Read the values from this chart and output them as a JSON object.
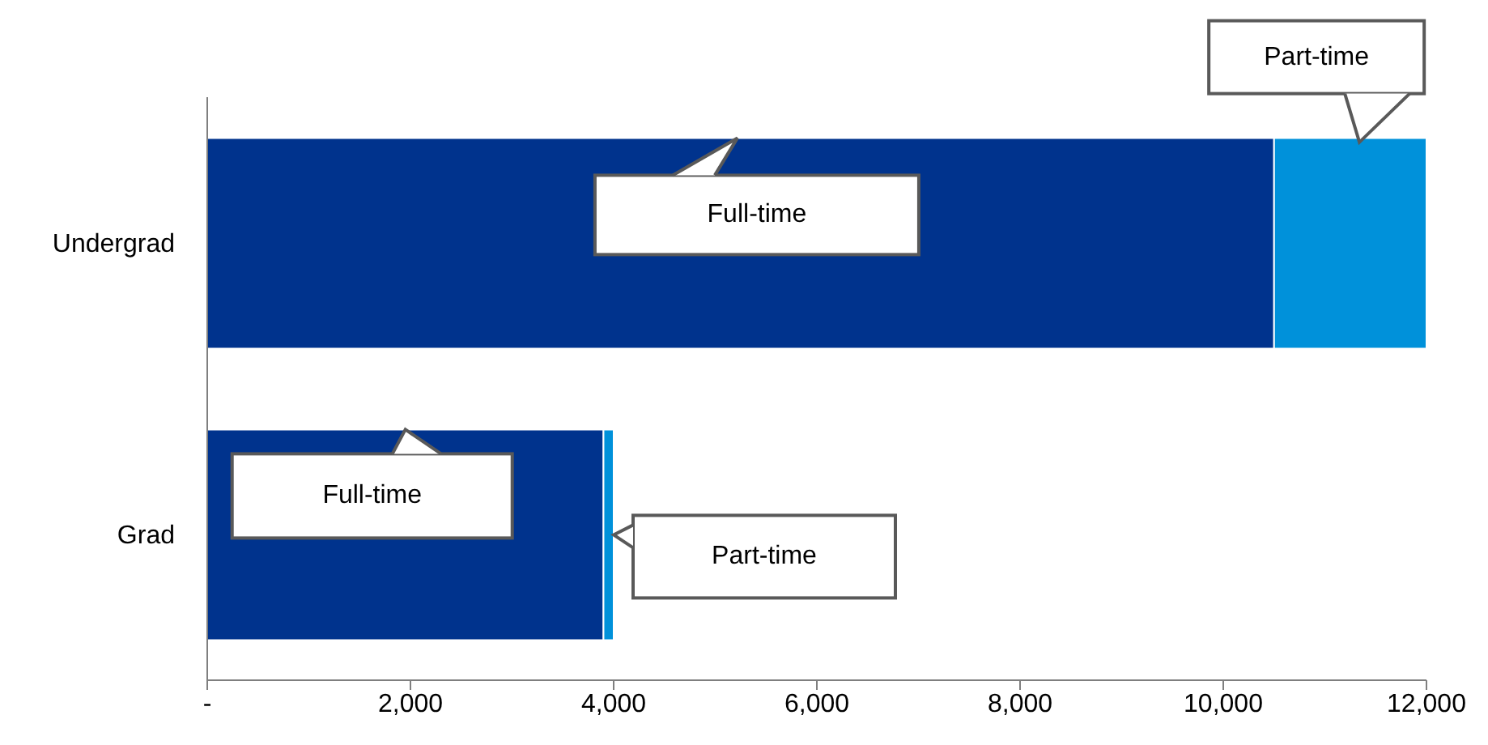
{
  "chart_data": {
    "type": "bar",
    "orientation": "horizontal",
    "stacked": true,
    "categories": [
      "Undergrad",
      "Grad"
    ],
    "series": [
      {
        "name": "Full-time",
        "color": "#00338d",
        "values": [
          10500,
          3900
        ]
      },
      {
        "name": "Part-time",
        "color": "#0091da",
        "values": [
          1500,
          100
        ]
      }
    ],
    "xlim": [
      0,
      12000
    ],
    "xticks": [
      {
        "value": 0,
        "label": "-"
      },
      {
        "value": 2000,
        "label": "2,000"
      },
      {
        "value": 4000,
        "label": "4,000"
      },
      {
        "value": 6000,
        "label": "6,000"
      },
      {
        "value": 8000,
        "label": "8,000"
      },
      {
        "value": 10000,
        "label": "10,000"
      },
      {
        "value": 12000,
        "label": "12,000"
      }
    ],
    "grid": false
  }
}
